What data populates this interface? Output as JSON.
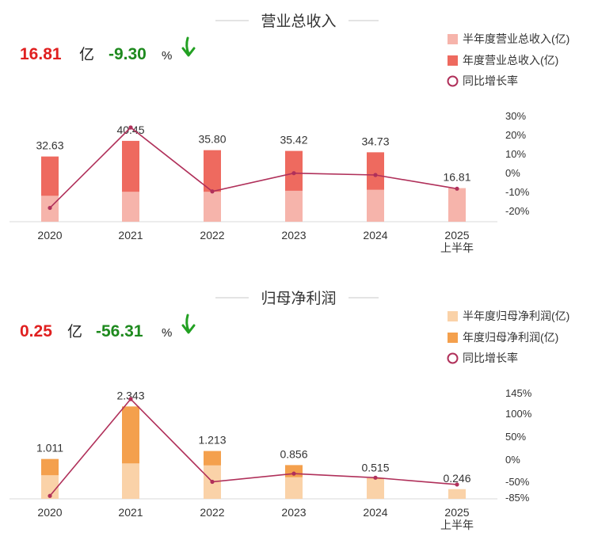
{
  "chart_data": [
    {
      "type": "bar",
      "title": "营业总收入",
      "headline": {
        "value": "16.81",
        "value_unit": "亿",
        "change": "-9.30",
        "change_unit": "%",
        "trend_icon": "down-arrow-icon"
      },
      "legend": [
        "半年度营业总收入(亿)",
        "年度营业总收入(亿)",
        "同比增长率"
      ],
      "legend_position": "top-right",
      "categories": [
        "2020",
        "2021",
        "2022",
        "2023",
        "2024",
        "2025\n上半年"
      ],
      "series": [
        {
          "name": "年度营业总收入(亿)",
          "values": [
            32.63,
            40.45,
            35.8,
            35.42,
            34.73,
            null
          ],
          "color": "#ee6a5f"
        },
        {
          "name": "半年度营业总收入(亿)",
          "values": [
            13.0,
            15.0,
            15.0,
            15.5,
            16.0,
            16.81
          ],
          "color": "#f6b4ab"
        },
        {
          "name": "同比增长率",
          "type": "line",
          "axis": "right",
          "values": [
            -20.5,
            23.5,
            -11.5,
            -1.5,
            -2.5,
            -10.0
          ],
          "color": "#b0305a"
        }
      ],
      "data_labels": [
        "32.63",
        "40.45",
        "35.80",
        "35.42",
        "34.73",
        "16.81"
      ],
      "y2_ticks": [
        "30%",
        "20%",
        "10%",
        "0%",
        "-10%",
        "-20%"
      ],
      "y2lim": [
        -22,
        30
      ],
      "ylim": [
        0,
        42
      ],
      "grid": false
    },
    {
      "type": "bar",
      "title": "归母净利润",
      "headline": {
        "value": "0.25",
        "value_unit": "亿",
        "change": "-56.31",
        "change_unit": "%",
        "trend_icon": "down-arrow-icon"
      },
      "legend": [
        "半年度归母净利润(亿)",
        "年度归母净利润(亿)",
        "同比增长率"
      ],
      "legend_position": "top-right",
      "categories": [
        "2020",
        "2021",
        "2022",
        "2023",
        "2024",
        "2025\n上半年"
      ],
      "series": [
        {
          "name": "年度归母净利润(亿)",
          "values": [
            1.011,
            2.343,
            1.213,
            0.856,
            0.515,
            null
          ],
          "color": "#f4a04d"
        },
        {
          "name": "半年度归母净利润(亿)",
          "values": [
            0.6,
            0.9,
            0.85,
            0.55,
            0.5,
            0.246
          ],
          "color": "#fad2a8"
        },
        {
          "name": "同比增长率",
          "type": "line",
          "axis": "right",
          "values": [
            -82,
            131,
            -51,
            -33,
            -42,
            -57
          ],
          "color": "#b0305a"
        }
      ],
      "data_labels": [
        "1.011",
        "2.343",
        "1.213",
        "0.856",
        "0.515",
        "0.246"
      ],
      "y2_ticks": [
        "145%",
        "100%",
        "50%",
        "0%",
        "-50%",
        "-85%"
      ],
      "y2_tick_values": [
        145,
        100,
        50,
        0,
        -50,
        -85
      ],
      "y2lim": [
        -85,
        145
      ],
      "ylim": [
        0,
        2.45
      ],
      "grid": false
    }
  ]
}
